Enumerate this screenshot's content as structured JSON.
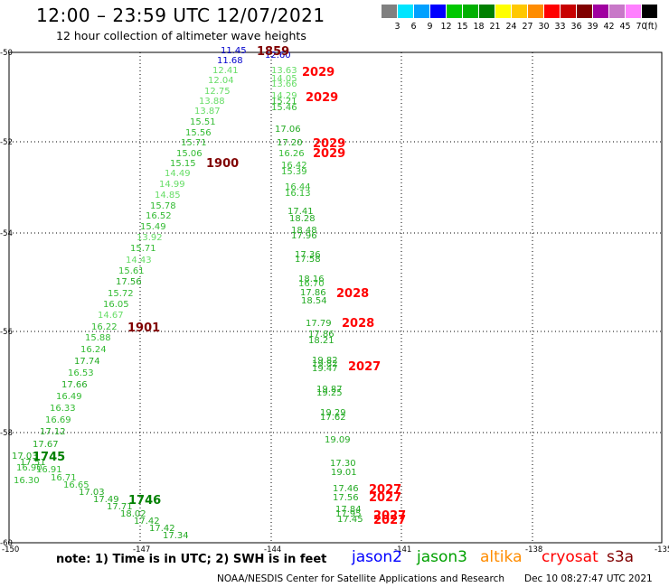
{
  "header": {
    "title": "12:00 – 23:59 UTC 12/07/2021",
    "subtitle": "12 hour collection of altimeter wave heights"
  },
  "colorbar": {
    "colors": [
      "#808080",
      "#00e5ff",
      "#00a0ff",
      "#0000ff",
      "#00c800",
      "#00b000",
      "#008000",
      "#ffff00",
      "#ffc800",
      "#ff8c00",
      "#ff0000",
      "#c80000",
      "#800000",
      "#a000a0",
      "#c878c8",
      "#ff80ff",
      "#000000"
    ],
    "labels": [
      "3",
      "6",
      "9",
      "12",
      "15",
      "18",
      "21",
      "24",
      "27",
      "30",
      "33",
      "36",
      "39",
      "42",
      "45",
      "70"
    ],
    "unit": "(ft)"
  },
  "map": {
    "lat_ticks": [
      "-50",
      "-52",
      "-54",
      "-56",
      "-58",
      "-60"
    ],
    "lon_ticks": [
      "-150",
      "-147",
      "-144",
      "-141",
      "-138",
      "-135"
    ],
    "track_west": [
      {
        "v": "11.45",
        "c": "#0000cc"
      },
      {
        "v": "11.68",
        "c": "#0000cc"
      },
      {
        "v": "12.41",
        "c": "#66dd66"
      },
      {
        "v": "12.04",
        "c": "#66dd66"
      },
      {
        "v": "12.75",
        "c": "#66dd66"
      },
      {
        "v": "13.88",
        "c": "#66dd66"
      },
      {
        "v": "13.87",
        "c": "#66dd66"
      },
      {
        "v": "15.51",
        "c": "#33bb33"
      },
      {
        "v": "15.56",
        "c": "#33bb33"
      },
      {
        "v": "15.71",
        "c": "#33bb33"
      },
      {
        "v": "15.06",
        "c": "#33bb33"
      },
      {
        "v": "15.15",
        "c": "#33bb33"
      },
      {
        "v": "14.49",
        "c": "#66dd66"
      },
      {
        "v": "14.99",
        "c": "#66dd66"
      },
      {
        "v": "14.85",
        "c": "#66dd66"
      },
      {
        "v": "15.78",
        "c": "#33bb33"
      },
      {
        "v": "16.52",
        "c": "#33bb33"
      },
      {
        "v": "15.49",
        "c": "#33bb33"
      },
      {
        "v": "13.92",
        "c": "#66dd66"
      },
      {
        "v": "15.71",
        "c": "#33bb33"
      },
      {
        "v": "14.43",
        "c": "#66dd66"
      },
      {
        "v": "15.61",
        "c": "#33bb33"
      },
      {
        "v": "17.56",
        "c": "#22aa22"
      },
      {
        "v": "15.72",
        "c": "#33bb33"
      },
      {
        "v": "16.05",
        "c": "#33bb33"
      },
      {
        "v": "14.67",
        "c": "#66dd66"
      },
      {
        "v": "16.22",
        "c": "#33bb33"
      },
      {
        "v": "15.88",
        "c": "#33bb33"
      },
      {
        "v": "16.24",
        "c": "#33bb33"
      },
      {
        "v": "17.74",
        "c": "#22aa22"
      },
      {
        "v": "16.53",
        "c": "#33bb33"
      },
      {
        "v": "17.66",
        "c": "#22aa22"
      },
      {
        "v": "16.49",
        "c": "#33bb33"
      },
      {
        "v": "16.33",
        "c": "#33bb33"
      },
      {
        "v": "16.69",
        "c": "#33bb33"
      },
      {
        "v": "17.12",
        "c": "#22aa22"
      },
      {
        "v": "17.67",
        "c": "#22aa22"
      },
      {
        "v": "17.03",
        "c": "#22aa22"
      },
      {
        "v": "17.51",
        "c": "#22aa22"
      },
      {
        "v": "16.90",
        "c": "#33bb33"
      },
      {
        "v": "16.91",
        "c": "#33bb33"
      },
      {
        "v": "16.30",
        "c": "#33bb33"
      },
      {
        "v": "16.71",
        "c": "#33bb33"
      },
      {
        "v": "16.65",
        "c": "#33bb33"
      },
      {
        "v": "17.03",
        "c": "#22aa22"
      },
      {
        "v": "17.49",
        "c": "#22aa22"
      },
      {
        "v": "17.71",
        "c": "#22aa22"
      },
      {
        "v": "18.02",
        "c": "#22aa22"
      },
      {
        "v": "17.42",
        "c": "#22aa22"
      },
      {
        "v": "17.42",
        "c": "#22aa22"
      },
      {
        "v": "17.34",
        "c": "#22aa22"
      }
    ],
    "track_east": [
      {
        "v": "12.60",
        "c": "#0000cc"
      },
      {
        "v": "13.63",
        "c": "#66dd66"
      },
      {
        "v": "14.05",
        "c": "#66dd66"
      },
      {
        "v": "13.66",
        "c": "#66dd66"
      },
      {
        "v": "14.29",
        "c": "#66dd66"
      },
      {
        "v": "15.21",
        "c": "#33bb33"
      },
      {
        "v": "15.46",
        "c": "#33bb33"
      },
      {
        "v": "17.06",
        "c": "#22aa22"
      },
      {
        "v": "17.20",
        "c": "#22aa22"
      },
      {
        "v": "16.26",
        "c": "#33bb33"
      },
      {
        "v": "16.42",
        "c": "#33bb33"
      },
      {
        "v": "15.39",
        "c": "#33bb33"
      },
      {
        "v": "16.44",
        "c": "#33bb33"
      },
      {
        "v": "16.13",
        "c": "#33bb33"
      },
      {
        "v": "17.41",
        "c": "#22aa22"
      },
      {
        "v": "18.28",
        "c": "#22aa22"
      },
      {
        "v": "18.48",
        "c": "#22aa22"
      },
      {
        "v": "17.96",
        "c": "#22aa22"
      },
      {
        "v": "17.36",
        "c": "#22aa22"
      },
      {
        "v": "17.58",
        "c": "#22aa22"
      },
      {
        "v": "18.16",
        "c": "#22aa22"
      },
      {
        "v": "16.70",
        "c": "#33bb33"
      },
      {
        "v": "17.86",
        "c": "#22aa22"
      },
      {
        "v": "18.54",
        "c": "#22aa22"
      },
      {
        "v": "17.79",
        "c": "#22aa22"
      },
      {
        "v": "17.86",
        "c": "#22aa22"
      },
      {
        "v": "18.21",
        "c": "#22aa22"
      },
      {
        "v": "19.82",
        "c": "#22aa22"
      },
      {
        "v": "19.82",
        "c": "#22aa22"
      },
      {
        "v": "19.47",
        "c": "#22aa22"
      },
      {
        "v": "19.87",
        "c": "#22aa22"
      },
      {
        "v": "19.25",
        "c": "#22aa22"
      },
      {
        "v": "19.29",
        "c": "#22aa22"
      },
      {
        "v": "17.62",
        "c": "#22aa22"
      },
      {
        "v": "19.09",
        "c": "#22aa22"
      },
      {
        "v": "17.30",
        "c": "#22aa22"
      },
      {
        "v": "19.01",
        "c": "#22aa22"
      },
      {
        "v": "17.46",
        "c": "#22aa22"
      },
      {
        "v": "17.56",
        "c": "#22aa22"
      },
      {
        "v": "17.84",
        "c": "#22aa22"
      },
      {
        "v": "17.95",
        "c": "#22aa22"
      },
      {
        "v": "17.45",
        "c": "#22aa22"
      }
    ],
    "time_labels": [
      {
        "t": "1859",
        "c": "#800000"
      },
      {
        "t": "1900",
        "c": "#800000"
      },
      {
        "t": "1901",
        "c": "#800000"
      },
      {
        "t": "1745",
        "c": "#008000"
      },
      {
        "t": "1746",
        "c": "#008000"
      },
      {
        "t": "2029",
        "c": "#ff0000"
      },
      {
        "t": "2029",
        "c": "#ff0000"
      },
      {
        "t": "2029",
        "c": "#ff0000"
      },
      {
        "t": "2029",
        "c": "#ff0000"
      },
      {
        "t": "2028",
        "c": "#ff0000"
      },
      {
        "t": "2028",
        "c": "#ff0000"
      },
      {
        "t": "2027",
        "c": "#ff0000"
      },
      {
        "t": "2027",
        "c": "#ff0000"
      },
      {
        "t": "2027",
        "c": "#ff0000"
      },
      {
        "t": "2027",
        "c": "#ff0000"
      },
      {
        "t": "2027",
        "c": "#ff0000"
      }
    ]
  },
  "footer": {
    "note": "note: 1) Time is in UTC; 2) SWH is in feet",
    "satellites": [
      {
        "name": "jason2",
        "color": "#0000ff"
      },
      {
        "name": "jason3",
        "color": "#00a000"
      },
      {
        "name": "altika",
        "color": "#ff8c00"
      },
      {
        "name": "cryosat",
        "color": "#ff0000"
      },
      {
        "name": "s3a",
        "color": "#800000"
      }
    ],
    "credit": "NOAA/NESDIS Center for Satellite Applications and Research",
    "timestamp": "Dec 10 08:27:47 UTC 2021"
  }
}
